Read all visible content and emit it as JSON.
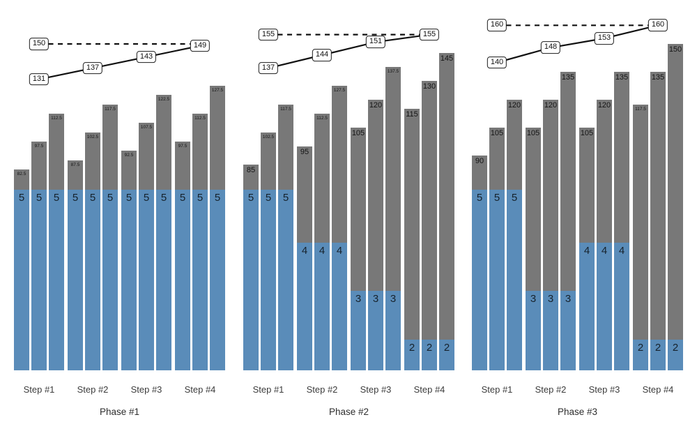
{
  "chart_data": {
    "type": "bar",
    "subtype": "grouped-bars-with-rep-overlay-and-trend-lines",
    "title": "",
    "xlabel": "",
    "ylabel": "",
    "grid": false,
    "axes_visible": false,
    "legend": null,
    "colors": {
      "weight_bar": "#787878",
      "reps_bar": "#5a8cb9",
      "trend_line": "#111111",
      "target_line": "#111111",
      "label_box_bg": "#ffffff",
      "label_box_border": "#1a1a1a"
    },
    "panels": [
      {
        "phase_label": "Phase #1",
        "target_line": 150,
        "trend_line": [
          131,
          137,
          143,
          149
        ],
        "steps": [
          {
            "label": "Step #1",
            "weights": [
              82.5,
              97.5,
              112.5
            ],
            "reps": 5
          },
          {
            "label": "Step #2",
            "weights": [
              87.5,
              102.5,
              117.5
            ],
            "reps": 5
          },
          {
            "label": "Step #3",
            "weights": [
              92.5,
              107.5,
              122.5
            ],
            "reps": 5
          },
          {
            "label": "Step #4",
            "weights": [
              97.5,
              112.5,
              127.5
            ],
            "reps": 5
          }
        ]
      },
      {
        "phase_label": "Phase #2",
        "target_line": 155,
        "trend_line": [
          137,
          144,
          151,
          155
        ],
        "steps": [
          {
            "label": "Step #1",
            "weights": [
              85,
              102.5,
              117.5
            ],
            "reps": 5
          },
          {
            "label": "Step #2",
            "weights": [
              95,
              112.5,
              127.5
            ],
            "reps": 4
          },
          {
            "label": "Step #3",
            "weights": [
              105,
              120,
              137.5
            ],
            "reps": 3
          },
          {
            "label": "Step #4",
            "weights": [
              115,
              130,
              145
            ],
            "reps": 2
          }
        ]
      },
      {
        "phase_label": "Phase #3",
        "target_line": 160,
        "trend_line": [
          140,
          148,
          153,
          160
        ],
        "steps": [
          {
            "label": "Step #1",
            "weights": [
              90,
              105,
              120
            ],
            "reps": 5
          },
          {
            "label": "Step #2",
            "weights": [
              105,
              120,
              135
            ],
            "reps": 3
          },
          {
            "label": "Step #3",
            "weights": [
              105,
              120,
              135
            ],
            "reps": 4
          },
          {
            "label": "Step #4",
            "weights": [
              117.5,
              135,
              150
            ],
            "reps": 2
          }
        ]
      }
    ]
  }
}
